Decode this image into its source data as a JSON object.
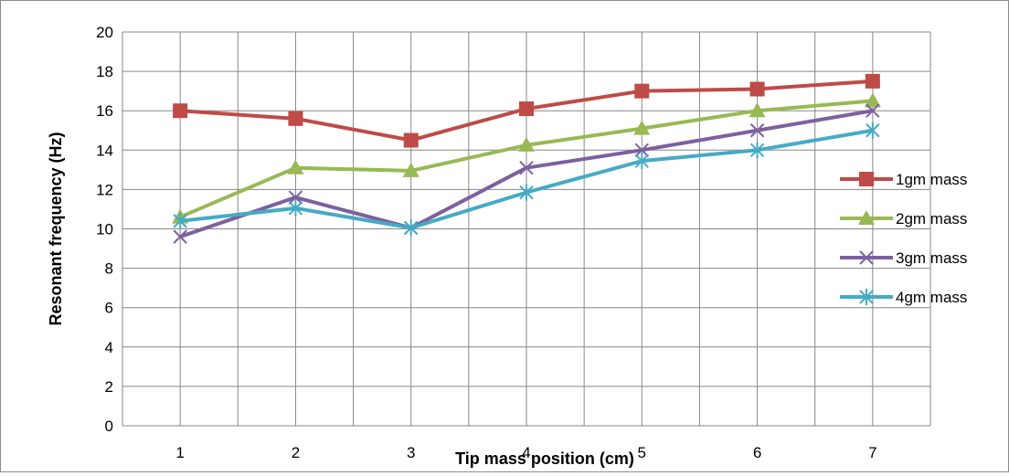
{
  "chart_data": {
    "type": "line",
    "xlabel": "Tip mass position (cm)",
    "ylabel": "Resonant frequency (Hz)",
    "categories": [
      "1",
      "2",
      "3",
      "4",
      "5",
      "6",
      "7"
    ],
    "ylim": [
      0,
      20
    ],
    "yticks": [
      0,
      2,
      4,
      6,
      8,
      10,
      12,
      14,
      16,
      18,
      20
    ],
    "grid": true,
    "legend_position": "right",
    "series": [
      {
        "name": "1gm mass",
        "values": [
          16.0,
          15.6,
          14.5,
          16.1,
          17.0,
          17.1,
          17.5
        ],
        "color": "#be4b48",
        "marker": "square"
      },
      {
        "name": "2gm mass",
        "values": [
          10.6,
          13.1,
          12.95,
          14.25,
          15.1,
          16.0,
          16.5
        ],
        "color": "#98b954",
        "marker": "triangle"
      },
      {
        "name": "3gm mass",
        "values": [
          9.6,
          11.6,
          10.05,
          13.1,
          14.0,
          15.0,
          16.0
        ],
        "color": "#7d60a0",
        "marker": "x"
      },
      {
        "name": "4gm mass",
        "values": [
          10.4,
          11.05,
          10.05,
          11.85,
          13.45,
          14.0,
          15.0
        ],
        "color": "#46aac5",
        "marker": "star"
      }
    ]
  }
}
